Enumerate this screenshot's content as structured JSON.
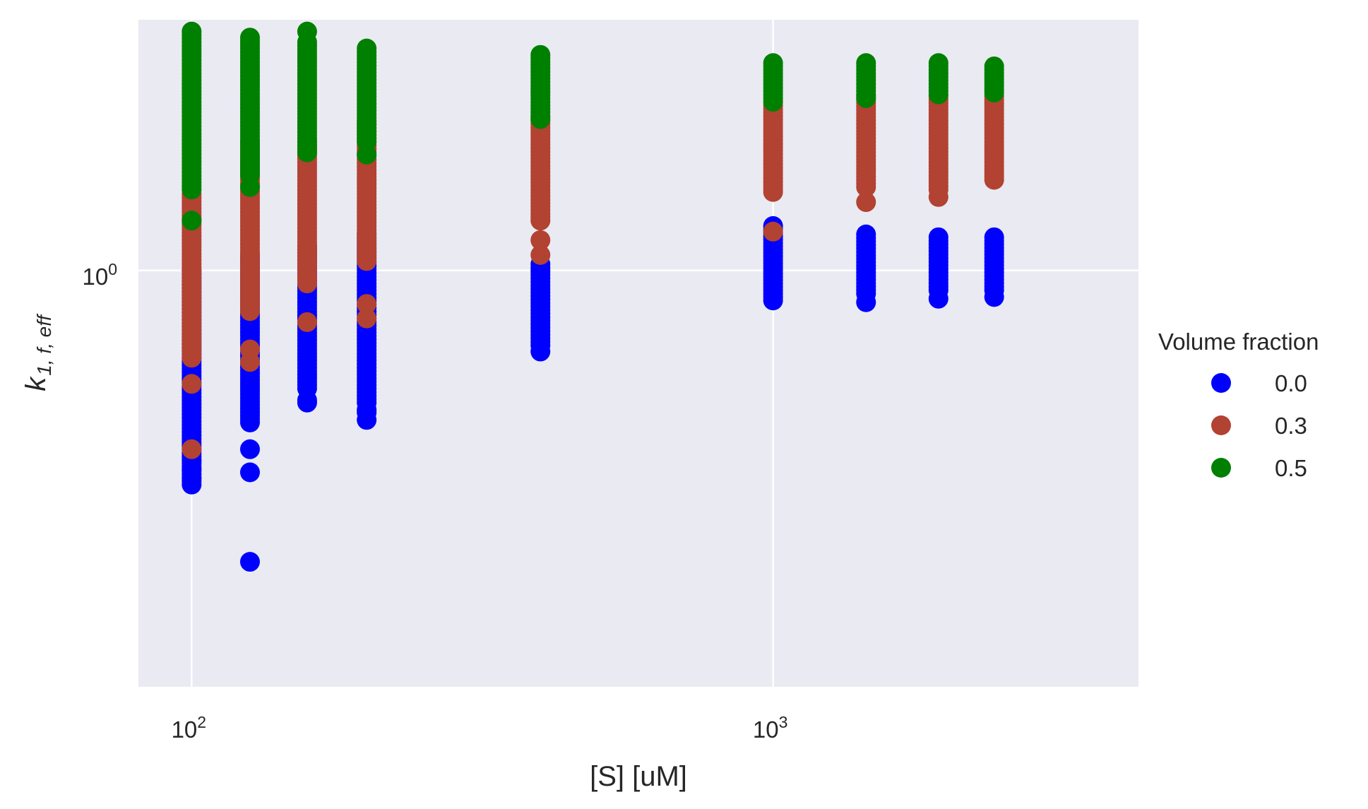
{
  "chart_data": {
    "type": "scatter",
    "xlabel": "[S] [uM]",
    "ylabel_base": "k",
    "ylabel_sub": "1, f, eff",
    "x_scale": "log",
    "y_scale": "log",
    "xlim": [
      81,
      4250
    ],
    "ylim": [
      0.27,
      2.2
    ],
    "x_ticks": [
      {
        "value": 100,
        "base": "10",
        "exp": "2"
      },
      {
        "value": 1000,
        "base": "10",
        "exp": "3"
      }
    ],
    "y_ticks": [
      {
        "value": 1.0,
        "base": "10",
        "exp": "0"
      }
    ],
    "grid": true,
    "background": "#eaeaf2",
    "legend": {
      "title": "Volume fraction",
      "placement": "right",
      "entries": [
        {
          "label": "0.0",
          "color": "#0000ff"
        },
        {
          "label": "0.3",
          "color": "#b24232"
        },
        {
          "label": "0.5",
          "color": "#008000"
        }
      ]
    },
    "series": [
      {
        "name": "0.0",
        "color": "#0000ff",
        "groups": [
          {
            "x": 100,
            "ymin": 0.51,
            "ymax": 1.0,
            "outliers": [
              0.55,
              0.52,
              0.535
            ]
          },
          {
            "x": 126,
            "ymin": 0.62,
            "ymax": 1.05,
            "outliers": [
              0.4,
              0.53,
              0.57
            ]
          },
          {
            "x": 158,
            "ymin": 0.69,
            "ymax": 1.08,
            "outliers": [
              0.66,
              0.665
            ]
          },
          {
            "x": 200,
            "ymin": 0.66,
            "ymax": 1.12,
            "outliers": [
              0.64,
              0.645,
              0.625
            ]
          },
          {
            "x": 398,
            "ymin": 0.79,
            "ymax": 1.02,
            "outliers": [
              0.775
            ]
          },
          {
            "x": 1000,
            "ymin": 0.91,
            "ymax": 1.15,
            "outliers": []
          },
          {
            "x": 1445,
            "ymin": 0.93,
            "ymax": 1.12,
            "outliers": [
              0.905
            ]
          },
          {
            "x": 1925,
            "ymin": 0.94,
            "ymax": 1.11,
            "outliers": [
              0.915
            ]
          },
          {
            "x": 2400,
            "ymin": 0.94,
            "ymax": 1.11,
            "outliers": [
              0.92
            ]
          }
        ]
      },
      {
        "name": "0.3",
        "color": "#b24232",
        "groups": [
          {
            "x": 100,
            "ymin": 0.76,
            "ymax": 1.27,
            "outliers": [
              0.7,
              0.57
            ]
          },
          {
            "x": 126,
            "ymin": 0.88,
            "ymax": 1.5,
            "outliers": [
              0.78,
              0.75
            ]
          },
          {
            "x": 158,
            "ymin": 0.96,
            "ymax": 1.5,
            "outliers": [
              0.85
            ]
          },
          {
            "x": 200,
            "ymin": 1.03,
            "ymax": 1.6,
            "outliers": [
              0.9,
              0.86
            ]
          },
          {
            "x": 398,
            "ymin": 1.17,
            "ymax": 1.62,
            "outliers": [
              1.1,
              1.05
            ]
          },
          {
            "x": 1000,
            "ymin": 1.28,
            "ymax": 1.68,
            "outliers": [
              1.13
            ]
          },
          {
            "x": 1445,
            "ymin": 1.3,
            "ymax": 1.73,
            "outliers": [
              1.24
            ]
          },
          {
            "x": 1925,
            "ymin": 1.29,
            "ymax": 1.73,
            "outliers": [
              1.26
            ]
          },
          {
            "x": 2400,
            "ymin": 1.33,
            "ymax": 1.73,
            "outliers": []
          }
        ]
      },
      {
        "name": "0.5",
        "color": "#008000",
        "groups": [
          {
            "x": 100,
            "ymin": 1.29,
            "ymax": 2.12,
            "outliers": [
              1.17
            ]
          },
          {
            "x": 126,
            "ymin": 1.35,
            "ymax": 2.08,
            "outliers": [
              1.3
            ]
          },
          {
            "x": 158,
            "ymin": 1.45,
            "ymax": 2.05,
            "outliers": [
              2.12
            ]
          },
          {
            "x": 200,
            "ymin": 1.5,
            "ymax": 2.01,
            "outliers": [
              1.44
            ]
          },
          {
            "x": 398,
            "ymin": 1.61,
            "ymax": 1.97,
            "outliers": []
          },
          {
            "x": 1000,
            "ymin": 1.7,
            "ymax": 1.92,
            "outliers": []
          },
          {
            "x": 1445,
            "ymin": 1.72,
            "ymax": 1.92,
            "outliers": []
          },
          {
            "x": 1925,
            "ymin": 1.74,
            "ymax": 1.92,
            "outliers": []
          },
          {
            "x": 2400,
            "ymin": 1.75,
            "ymax": 1.9,
            "outliers": []
          }
        ]
      }
    ]
  }
}
